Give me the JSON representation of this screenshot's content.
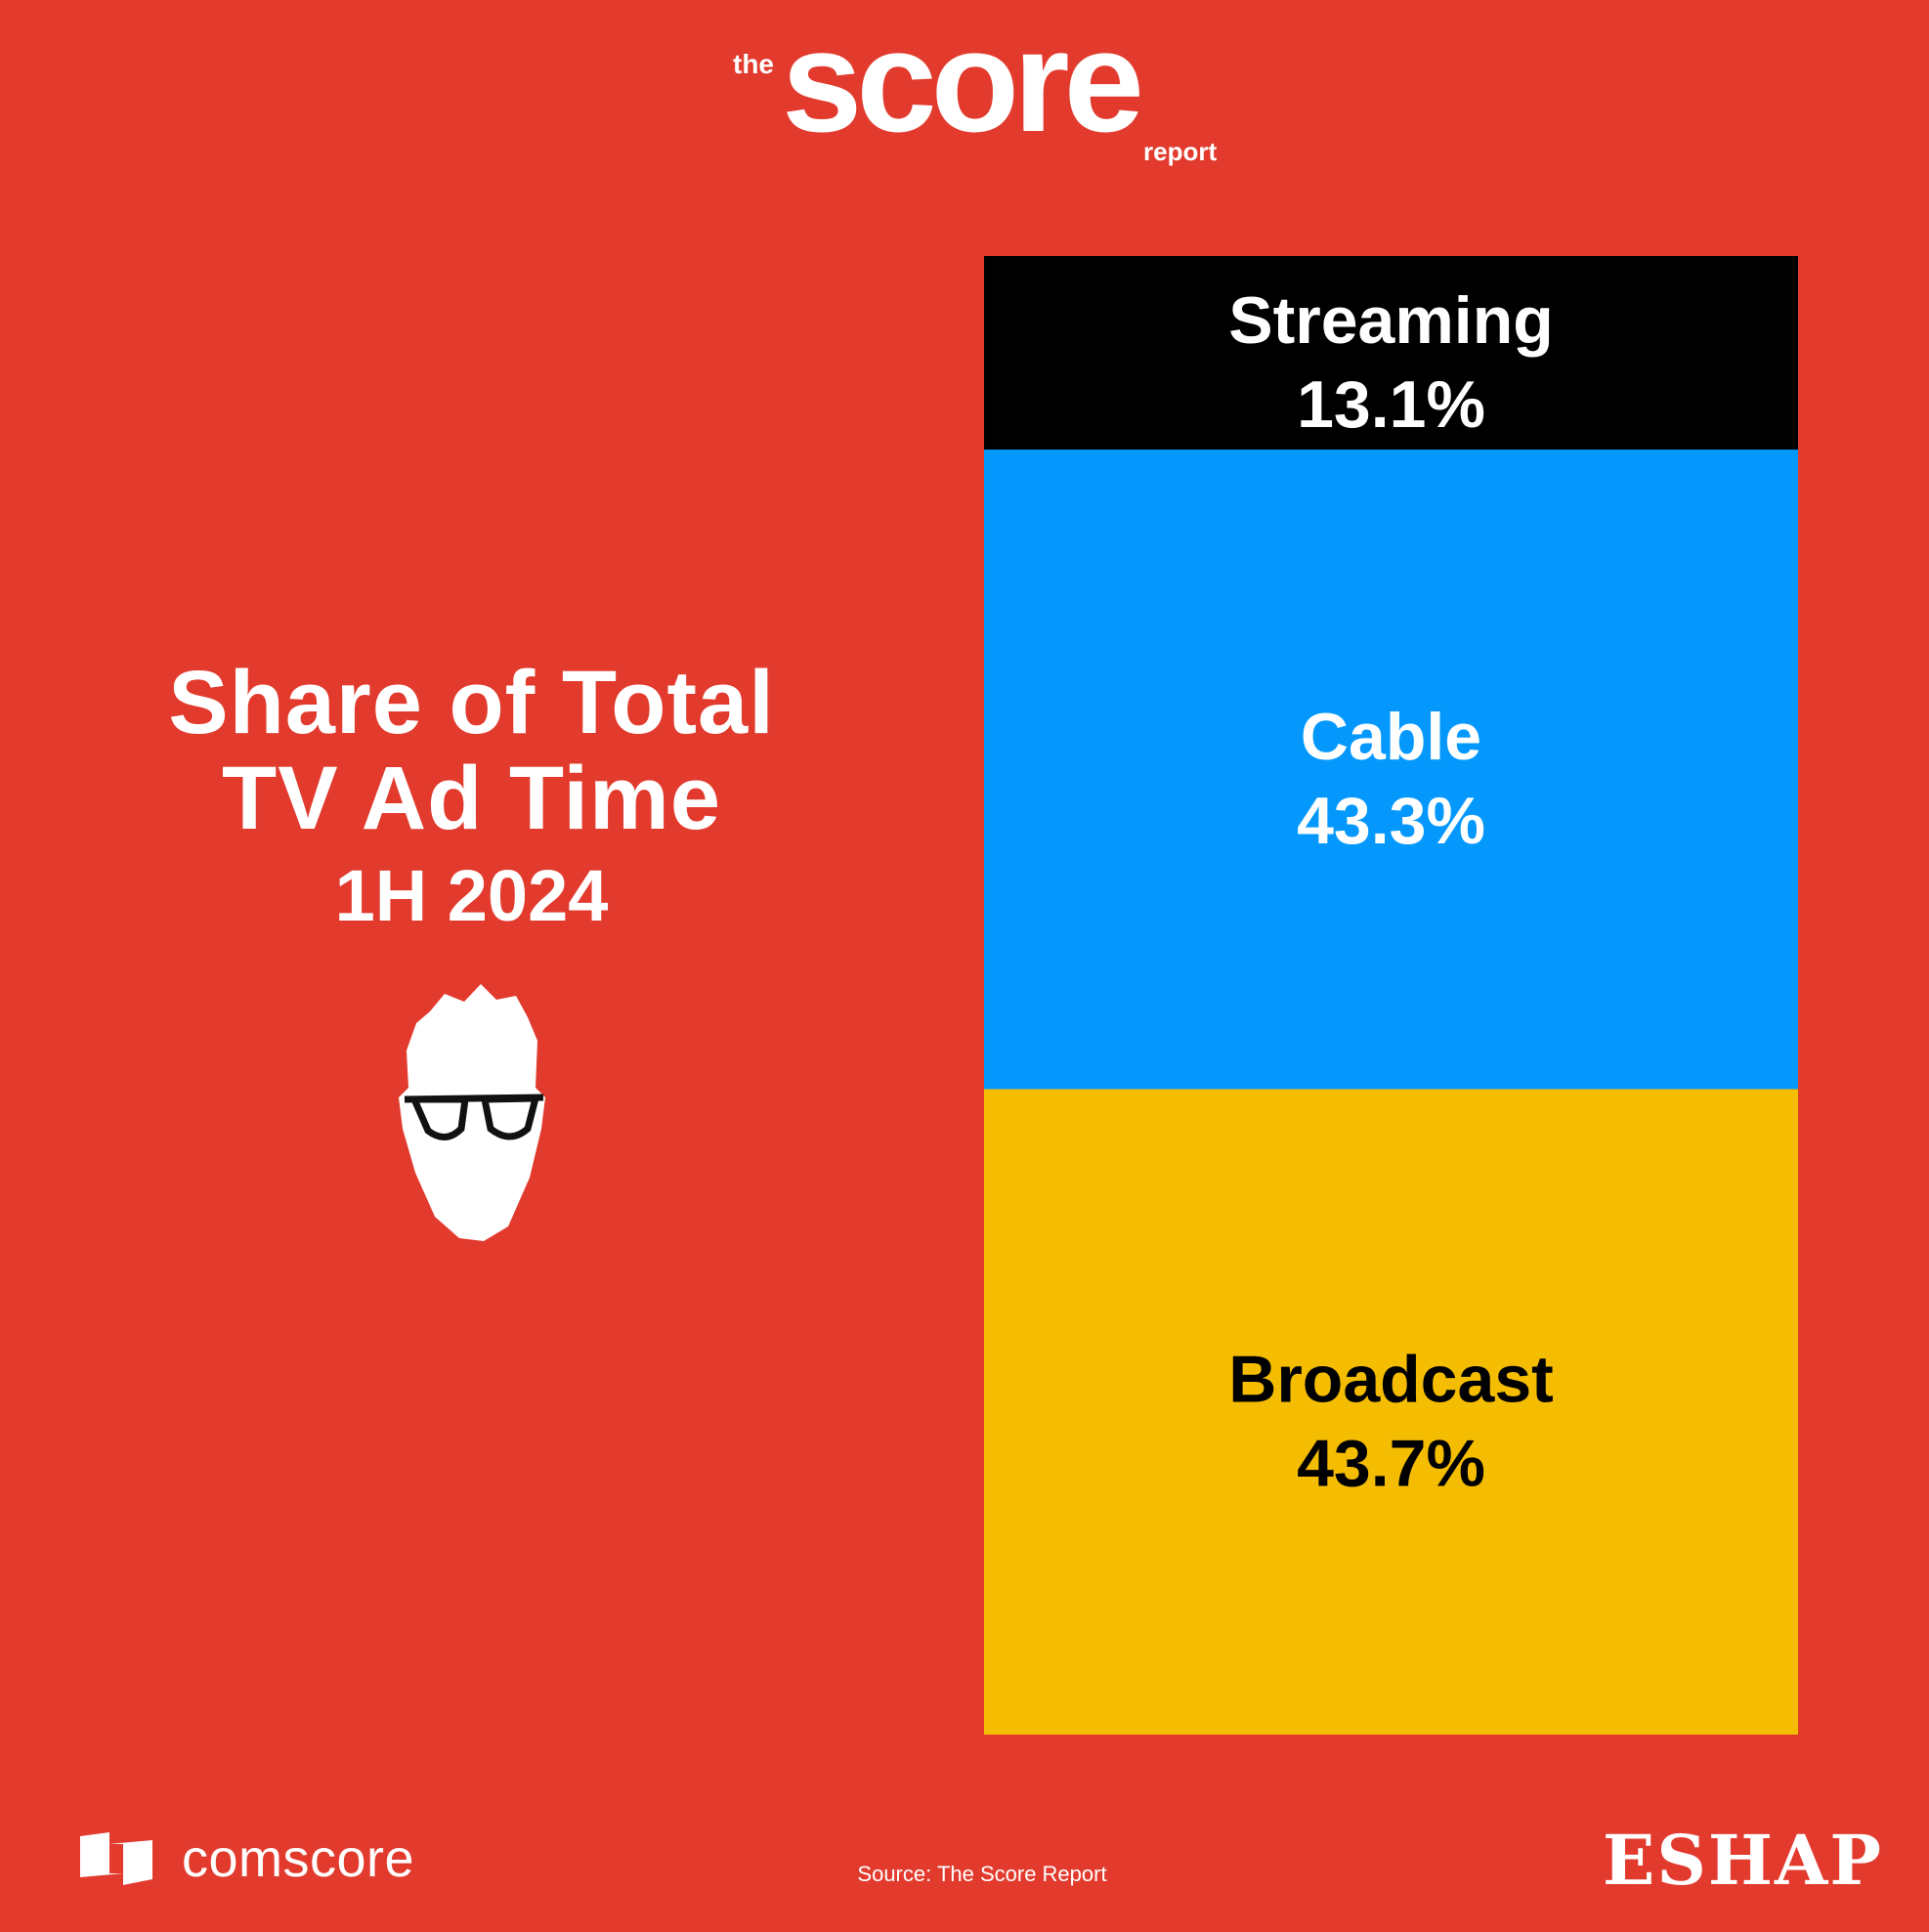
{
  "logo": {
    "the": "the",
    "score": "score",
    "report": "report"
  },
  "title": {
    "line1": "Share of Total",
    "line2": "TV Ad Time",
    "period": "1H 2024"
  },
  "chart_data": {
    "type": "bar",
    "stacked": true,
    "categories": [
      "Broadcast",
      "Cable",
      "Streaming"
    ],
    "values": [
      43.7,
      43.3,
      13.1
    ],
    "value_labels": [
      "43.7%",
      "43.3%",
      "13.1%"
    ],
    "colors": [
      "#F5BD02",
      "#0598FC",
      "#000000"
    ],
    "label_colors": [
      "#000000",
      "#ffffff",
      "#ffffff"
    ],
    "title": "Share of Total TV Ad Time",
    "subtitle": "1H 2024",
    "xlabel": "",
    "ylabel": "",
    "ylim": [
      0,
      100
    ],
    "grid": false,
    "legend": "none"
  },
  "footer": {
    "left_logo": "comscore",
    "source": "Source: The Score Report",
    "right_logo": "ESHAP"
  }
}
